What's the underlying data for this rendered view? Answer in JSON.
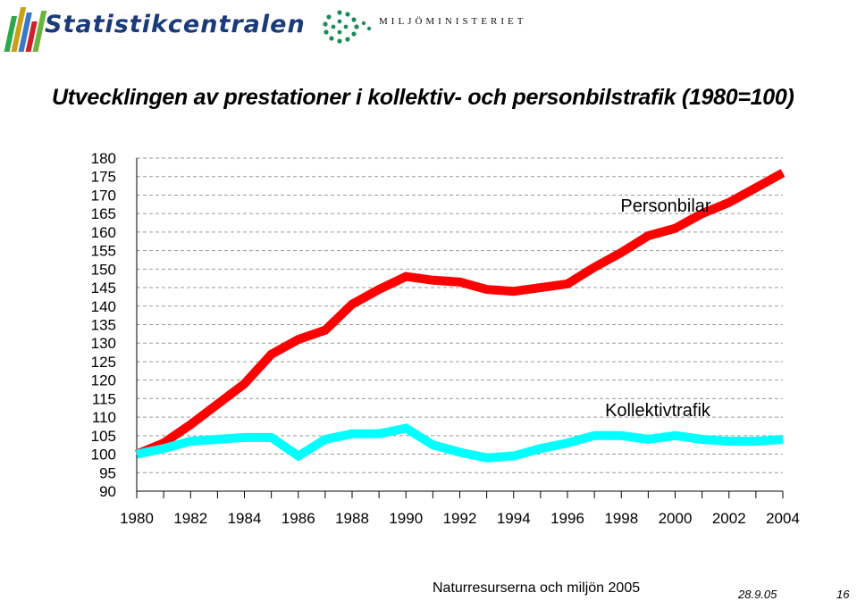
{
  "header": {
    "org_name": "Statistikcentralen",
    "ministry_name": "MILJÖMINISTERIET"
  },
  "title": "Utvecklingen av prestationer i kollektiv- och personbilstrafik (1980=100)",
  "chart_data": {
    "type": "line",
    "title": "Utvecklingen av prestationer i kollektiv- och personbilstrafik (1980=100)",
    "xlabel": "",
    "ylabel": "",
    "x": [
      1980,
      1981,
      1982,
      1983,
      1984,
      1985,
      1986,
      1987,
      1988,
      1989,
      1990,
      1991,
      1992,
      1993,
      1994,
      1995,
      1996,
      1997,
      1998,
      1999,
      2000,
      2001,
      2002,
      2003,
      2004
    ],
    "x_tick_labels": [
      "1980",
      "1982",
      "1984",
      "1986",
      "1988",
      "1990",
      "1992",
      "1994",
      "1996",
      "1998",
      "2000",
      "2002",
      "2004"
    ],
    "y_tick_labels": [
      "180",
      "175",
      "170",
      "165",
      "160",
      "155",
      "150",
      "145",
      "140",
      "135",
      "130",
      "125",
      "120",
      "115",
      "110",
      "105",
      "100",
      "95",
      "90"
    ],
    "ylim": [
      90,
      180
    ],
    "xlim": [
      1980,
      2004
    ],
    "grid": true,
    "series": [
      {
        "name": "Personbilar",
        "color": "#ff0000",
        "values": [
          100,
          103,
          108,
          113.5,
          119,
          127,
          131,
          133.5,
          140.5,
          144.5,
          148,
          147,
          146.5,
          144.5,
          144,
          145,
          146,
          150.5,
          154.5,
          159,
          161,
          165,
          168,
          172,
          176
        ]
      },
      {
        "name": "Kollektivtrafik",
        "color": "#00ffff",
        "values": [
          100,
          101.5,
          103.5,
          104,
          104.5,
          104.5,
          99.5,
          104,
          105.5,
          105.5,
          107,
          102.5,
          100.5,
          99,
          99.5,
          101.5,
          103,
          105,
          105,
          104,
          105,
          104,
          103.5,
          103.5,
          104
        ]
      }
    ]
  },
  "footer": {
    "source": "Naturresurserna och miljön 2005",
    "date": "28.9.05",
    "page": "16"
  }
}
